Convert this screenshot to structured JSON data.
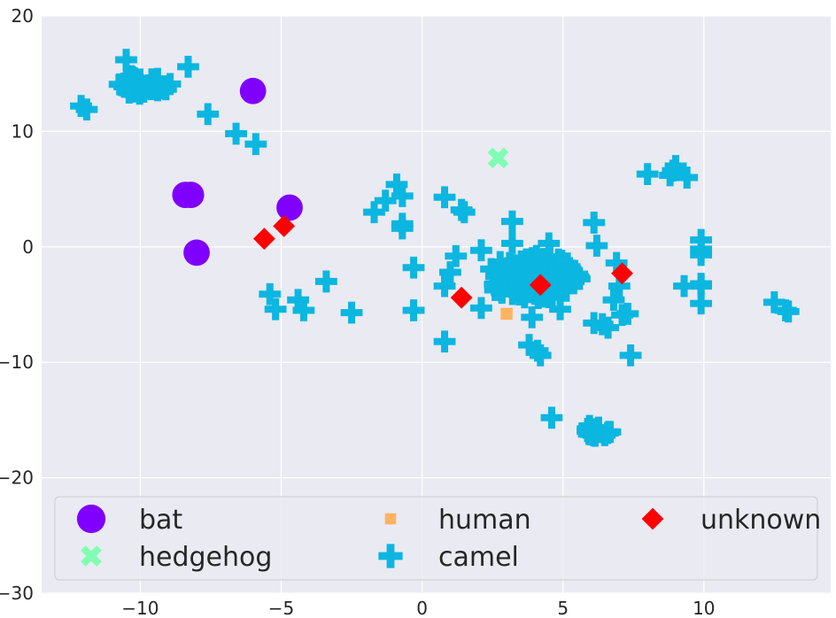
{
  "chart_data": {
    "type": "scatter",
    "title": "",
    "xlabel": "",
    "ylabel": "",
    "xlim": [
      -13.5,
      14.5
    ],
    "ylim": [
      -30,
      20
    ],
    "x_ticks": [
      -10,
      -5,
      0,
      5,
      10
    ],
    "x_tick_labels": [
      "−10",
      "−5",
      "0",
      "5",
      "10"
    ],
    "y_ticks": [
      -30,
      -20,
      -10,
      0,
      10,
      20
    ],
    "y_tick_labels": [
      "−30",
      "−20",
      "−10",
      "0",
      "10",
      "20"
    ],
    "grid": true,
    "background_color": "#eaeaf2",
    "grid_color": "#ffffff",
    "legend": {
      "placement": "lower-center",
      "columns": 3,
      "order": [
        "bat",
        "hedgehog",
        "human",
        "camel",
        "unknown"
      ]
    },
    "series": [
      {
        "name": "bat",
        "marker": "circle",
        "color": "#8000ff",
        "points": [
          [
            -6.0,
            13.5
          ],
          [
            -8.4,
            4.5
          ],
          [
            -8.2,
            4.5
          ],
          [
            -4.7,
            3.4
          ],
          [
            -8.0,
            -0.5
          ]
        ]
      },
      {
        "name": "hedgehog",
        "marker": "x",
        "color": "#80ffb4",
        "points": [
          [
            2.7,
            7.7
          ]
        ]
      },
      {
        "name": "human",
        "marker": "square",
        "color": "#ffb360",
        "points": [
          [
            3.0,
            -5.8
          ]
        ]
      },
      {
        "name": "camel",
        "marker": "plus",
        "color": "#0bb6e0",
        "clusters": [
          {
            "center": [
              -9.9,
              14.1
            ],
            "radius_x": 1.0,
            "radius_y": 0.9,
            "count": 40
          },
          {
            "center": [
              3.9,
              -2.6
            ],
            "radius_x": 1.7,
            "radius_y": 1.9,
            "count": 95
          },
          {
            "center": [
              6.2,
              -15.9
            ],
            "radius_x": 0.5,
            "radius_y": 0.5,
            "count": 14
          }
        ],
        "points": [
          [
            -10.5,
            16.2
          ],
          [
            -12.1,
            12.2
          ],
          [
            -11.9,
            11.9
          ],
          [
            -8.3,
            15.6
          ],
          [
            -7.6,
            11.5
          ],
          [
            -6.6,
            9.8
          ],
          [
            -5.9,
            8.9
          ],
          [
            -5.4,
            -4.1
          ],
          [
            -5.2,
            -5.4
          ],
          [
            -4.4,
            -4.6
          ],
          [
            -4.2,
            -5.5
          ],
          [
            -3.4,
            -3.0
          ],
          [
            -2.5,
            -5.7
          ],
          [
            -1.7,
            3.0
          ],
          [
            -1.3,
            4.0
          ],
          [
            -0.9,
            5.4
          ],
          [
            -0.7,
            4.4
          ],
          [
            -0.7,
            2.0
          ],
          [
            -0.7,
            1.6
          ],
          [
            -0.3,
            -1.8
          ],
          [
            -0.3,
            -5.5
          ],
          [
            0.8,
            4.3
          ],
          [
            0.8,
            -3.4
          ],
          [
            0.8,
            -8.2
          ],
          [
            1.0,
            -2.2
          ],
          [
            1.2,
            -0.8
          ],
          [
            1.4,
            3.2
          ],
          [
            1.5,
            3.0
          ],
          [
            2.1,
            -0.3
          ],
          [
            2.1,
            -5.3
          ],
          [
            3.2,
            2.2
          ],
          [
            3.2,
            0.3
          ],
          [
            3.8,
            -8.5
          ],
          [
            3.9,
            -6.1
          ],
          [
            4.1,
            -9.0
          ],
          [
            4.2,
            -9.4
          ],
          [
            4.5,
            0.3
          ],
          [
            4.6,
            -14.8
          ],
          [
            4.9,
            -5.4
          ],
          [
            6.1,
            2.1
          ],
          [
            6.2,
            0.1
          ],
          [
            6.1,
            -6.6
          ],
          [
            6.4,
            -6.7
          ],
          [
            6.6,
            -7.0
          ],
          [
            6.8,
            -4.6
          ],
          [
            6.9,
            -1.4
          ],
          [
            7.0,
            -3.4
          ],
          [
            7.1,
            -5.9
          ],
          [
            7.3,
            -5.8
          ],
          [
            7.4,
            -9.4
          ],
          [
            8.0,
            6.3
          ],
          [
            8.8,
            6.2
          ],
          [
            8.9,
            6.6
          ],
          [
            9.0,
            7.0
          ],
          [
            9.4,
            6.0
          ],
          [
            9.3,
            -3.4
          ],
          [
            9.9,
            0.6
          ],
          [
            9.9,
            -0.2
          ],
          [
            9.9,
            -0.7
          ],
          [
            9.9,
            -3.4
          ],
          [
            9.9,
            -3.2
          ],
          [
            9.9,
            -4.9
          ],
          [
            12.5,
            -4.8
          ],
          [
            12.9,
            -5.5
          ],
          [
            13.0,
            -5.6
          ]
        ]
      },
      {
        "name": "unknown",
        "marker": "diamond",
        "color": "#ff0000",
        "points": [
          [
            -5.6,
            0.7
          ],
          [
            -4.9,
            1.8
          ],
          [
            1.4,
            -4.4
          ],
          [
            4.2,
            -3.3
          ],
          [
            7.1,
            -2.3
          ]
        ]
      }
    ]
  }
}
